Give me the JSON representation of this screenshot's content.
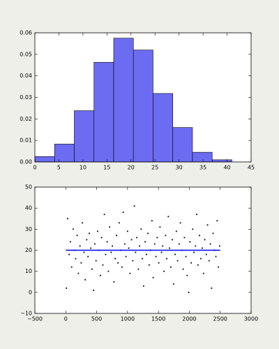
{
  "chart_data": [
    {
      "type": "histogram",
      "color": "#6c6cf2",
      "bins": [
        0,
        4.1,
        8.2,
        12.3,
        16.4,
        20.5,
        24.6,
        28.7,
        32.8,
        36.9,
        41
      ],
      "values": [
        0.0025,
        0.0083,
        0.0238,
        0.0463,
        0.0575,
        0.052,
        0.0318,
        0.016,
        0.0045,
        0.001
      ],
      "xlim": [
        0,
        45
      ],
      "ylim": [
        0,
        0.06
      ],
      "xticks": [
        0,
        5,
        10,
        15,
        20,
        25,
        30,
        35,
        40,
        45
      ],
      "yticks": [
        {
          "value": 0,
          "label": "0.00"
        },
        {
          "value": 0.01,
          "label": "0.01"
        },
        {
          "value": 0.02,
          "label": "0.02"
        },
        {
          "value": 0.03,
          "label": "0.03"
        },
        {
          "value": 0.04,
          "label": "0.04"
        },
        {
          "value": 0.05,
          "label": "0.05"
        },
        {
          "value": 0.06,
          "label": "0.06"
        }
      ]
    },
    {
      "type": "scatter",
      "color": "black",
      "x": [
        10,
        30,
        55,
        75,
        95,
        120,
        140,
        160,
        185,
        205,
        230,
        250,
        270,
        295,
        315,
        340,
        360,
        380,
        405,
        425,
        450,
        470,
        490,
        515,
        535,
        560,
        580,
        600,
        625,
        645,
        670,
        690,
        710,
        735,
        755,
        780,
        800,
        820,
        845,
        865,
        890,
        910,
        930,
        955,
        975,
        1000,
        1020,
        1040,
        1065,
        1085,
        1110,
        1130,
        1150,
        1175,
        1195,
        1220,
        1240,
        1260,
        1285,
        1305,
        1330,
        1350,
        1370,
        1395,
        1415,
        1440,
        1460,
        1480,
        1505,
        1525,
        1550,
        1570,
        1590,
        1615,
        1635,
        1660,
        1680,
        1700,
        1725,
        1745,
        1770,
        1790,
        1810,
        1835,
        1855,
        1880,
        1900,
        1920,
        1945,
        1965,
        1990,
        2010,
        2030,
        2055,
        2075,
        2100,
        2120,
        2140,
        2165,
        2185,
        2210,
        2230,
        2250,
        2275,
        2295,
        2320,
        2340,
        2360,
        2385,
        2405,
        2430,
        2450,
        2470,
        2490
      ],
      "values": [
        2,
        35,
        18,
        24,
        12,
        30,
        20,
        16,
        27,
        9,
        22,
        14,
        33,
        19,
        6,
        25,
        17,
        28,
        21,
        11,
        1,
        23,
        15,
        29,
        20,
        8,
        26,
        13,
        37,
        18,
        24,
        10,
        31,
        19,
        22,
        5,
        16,
        27,
        14,
        33,
        20,
        12,
        38,
        23,
        17,
        29,
        21,
        9,
        25,
        15,
        41,
        19,
        26,
        11,
        22,
        30,
        16,
        3,
        24,
        18,
        28,
        13,
        20,
        34,
        7,
        23,
        17,
        26,
        14,
        31,
        19,
        22,
        10,
        27,
        16,
        36,
        21,
        12,
        25,
        4,
        18,
        29,
        15,
        23,
        33,
        20,
        11,
        26,
        17,
        8,
        0,
        24,
        14,
        30,
        19,
        22,
        37,
        13,
        27,
        16,
        21,
        9,
        25,
        18,
        32,
        15,
        23,
        2,
        28,
        20,
        17,
        34,
        12,
        22
      ],
      "line": {
        "x": [
          0,
          2500
        ],
        "values": [
          20,
          20
        ],
        "color": "blue"
      },
      "xlim": [
        -500,
        3000
      ],
      "ylim": [
        -10,
        50
      ],
      "xticks": [
        {
          "value": -500,
          "label": "−500"
        },
        0,
        500,
        1000,
        1500,
        2000,
        2500,
        3000
      ],
      "yticks": [
        {
          "value": -10,
          "label": "−10"
        },
        0,
        10,
        20,
        30,
        40,
        50
      ]
    }
  ]
}
